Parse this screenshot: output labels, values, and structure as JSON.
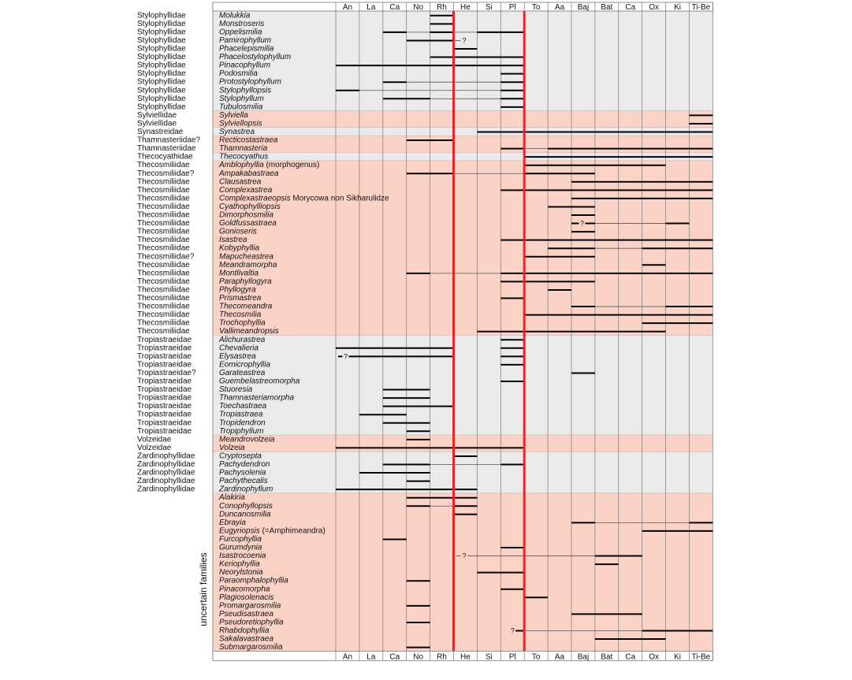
{
  "chart_data": {
    "type": "range-chart",
    "stages": [
      "An",
      "La",
      "Ca",
      "No",
      "Rh",
      "He",
      "Si",
      "Pl",
      "To",
      "Aa",
      "Baj",
      "Bat",
      "Ca",
      "Ox",
      "Ki",
      "Ti-Be"
    ],
    "group_label": "uncertain families",
    "colors": {
      "pink": "#fbd3c6",
      "gray": "#eaeaea",
      "boundary": "#e8262a",
      "bar": "#000000",
      "range": "#555555",
      "grid": "#777777"
    },
    "rows": [
      {
        "family": "Stylophyllidae",
        "genus": "Molukkia",
        "bg": "gray",
        "bars": [
          [
            4,
            5
          ]
        ]
      },
      {
        "family": "Stylophyllidae",
        "genus": "Monstroseris",
        "bg": "gray",
        "bars": [
          [
            4,
            5
          ]
        ]
      },
      {
        "family": "Stylophyllidae",
        "genus": "Oppelismilia",
        "bg": "gray",
        "bars": [
          [
            2,
            3
          ],
          [
            4,
            5
          ],
          [
            6,
            8
          ]
        ],
        "ranges": [
          [
            2,
            8
          ]
        ]
      },
      {
        "family": "Stylophyllidae",
        "genus": "Pamirophyllum",
        "bg": "gray",
        "bars": [
          [
            3,
            5
          ]
        ],
        "ranges": [
          [
            3,
            5.3
          ]
        ],
        "qs": [
          5.45
        ]
      },
      {
        "family": "Stylophyllidae",
        "genus": "Phacelepismilia",
        "bg": "gray",
        "bars": [
          [
            5,
            6
          ]
        ]
      },
      {
        "family": "Stylophyllidae",
        "genus": "Phacelostylophyllum",
        "bg": "gray",
        "bars": [
          [
            4,
            8
          ]
        ]
      },
      {
        "family": "Stylophyllidae",
        "genus": "Pinacophyllum",
        "bg": "gray",
        "bars": [
          [
            0,
            8
          ]
        ]
      },
      {
        "family": "Stylophyllidae",
        "genus": "Podosmilia",
        "bg": "gray",
        "bars": [
          [
            7,
            8
          ]
        ]
      },
      {
        "family": "Stylophyllidae",
        "genus": "Protostylophyllum",
        "bg": "gray",
        "bars": [
          [
            2,
            3
          ],
          [
            7,
            8
          ]
        ],
        "ranges": [
          [
            2,
            8
          ]
        ]
      },
      {
        "family": "Stylophyllidae",
        "genus": "Stylophyllopsis",
        "bg": "gray",
        "bars": [
          [
            0,
            1
          ],
          [
            7,
            8
          ]
        ],
        "ranges": [
          [
            0,
            8
          ]
        ]
      },
      {
        "family": "Stylophyllidae",
        "genus": "Stylophyllum",
        "bg": "gray",
        "bars": [
          [
            2,
            4
          ],
          [
            7,
            8
          ]
        ],
        "ranges": [
          [
            2,
            8
          ]
        ]
      },
      {
        "family": "Stylophyllidae",
        "genus": "Tubulosmilia",
        "bg": "gray",
        "bars": [
          [
            7,
            8
          ]
        ]
      },
      {
        "family": "Sylviellidae",
        "genus": "Sylviella",
        "bg": "pink",
        "bars": [
          [
            15,
            16
          ]
        ]
      },
      {
        "family": "Sylviellidae",
        "genus": "Sylviellopsis",
        "bg": "pink",
        "bars": [
          [
            15,
            16
          ]
        ]
      },
      {
        "family": "Synastreidae",
        "genus": "Synastrea",
        "bg": "gray",
        "bars": [
          [
            6,
            16
          ]
        ]
      },
      {
        "family": "Thamnasteriidae?",
        "genus": "Recticostastraea",
        "bg": "pink",
        "bars": [
          [
            3,
            5
          ]
        ]
      },
      {
        "family": "Thamnasteriidae",
        "genus": "Thamnasteria",
        "bg": "pink",
        "bars": [
          [
            7,
            8
          ],
          [
            9,
            16
          ]
        ],
        "ranges": [
          [
            7,
            16
          ]
        ]
      },
      {
        "family": "Thecocyathidae",
        "genus": "Thecocyathus",
        "bg": "gray",
        "bars": [
          [
            8,
            16
          ]
        ]
      },
      {
        "family": "Thecosmiliidae",
        "genus": "Amblophyllia",
        "suffix": " (morphogenus)",
        "bg": "pink",
        "bars": [
          [
            8,
            14
          ]
        ]
      },
      {
        "family": "Thecosmiliidae?",
        "genus": "Ampakabastraea",
        "bg": "pink",
        "bars": [
          [
            3,
            5
          ],
          [
            8,
            11
          ]
        ],
        "ranges": [
          [
            3,
            11
          ]
        ]
      },
      {
        "family": "Thecosmiliidae",
        "genus": "Clausastrea",
        "bg": "pink",
        "bars": [
          [
            10,
            16
          ]
        ]
      },
      {
        "family": "Thecosmiliidae",
        "genus": "Complexastrea",
        "bg": "pink",
        "bars": [
          [
            7,
            16
          ]
        ]
      },
      {
        "family": "Thecosmiliidae",
        "genus": "Complexastraeopsis",
        "suffix": " Morycowa non Sikharulidze",
        "bg": "pink",
        "bars": [
          [
            10,
            16
          ]
        ]
      },
      {
        "family": "Thecosmiliidae",
        "genus": "Cyathophylliopsis",
        "bg": "pink",
        "bars": [
          [
            9,
            11
          ]
        ]
      },
      {
        "family": "Thecosmiliidae",
        "genus": "Dimorphosmilia",
        "bg": "pink",
        "bars": [
          [
            10,
            11
          ]
        ]
      },
      {
        "family": "Thecosmiliidae",
        "genus": "Goldfussastraea",
        "bg": "pink",
        "bars": [
          [
            10,
            11
          ],
          [
            14,
            15
          ]
        ],
        "ranges": [
          [
            10,
            15
          ]
        ],
        "qs": [
          10.45
        ]
      },
      {
        "family": "Thecosmiliidae",
        "genus": "Gonioseris",
        "bg": "pink",
        "bars": [
          [
            10,
            11
          ]
        ]
      },
      {
        "family": "Thecosmiliidae",
        "genus": "Isastrea",
        "bg": "pink",
        "bars": [
          [
            7,
            16
          ]
        ]
      },
      {
        "family": "Thecosmiliidae",
        "genus": "Kobyphyllia",
        "bg": "pink",
        "bars": [
          [
            9,
            11
          ],
          [
            13,
            16
          ]
        ],
        "ranges": [
          [
            9,
            16
          ]
        ]
      },
      {
        "family": "Thecosmiliidae?",
        "genus": "Mapucheastrea",
        "bg": "pink",
        "bars": [
          [
            8,
            11
          ]
        ]
      },
      {
        "family": "Thecosmiliidae",
        "genus": "Meandramorpha",
        "bg": "pink",
        "bars": [
          [
            13,
            14
          ]
        ]
      },
      {
        "family": "Thecosmiliidae",
        "genus": "Montlivaltia",
        "bg": "pink",
        "bars": [
          [
            3,
            4
          ],
          [
            7,
            16
          ]
        ],
        "ranges": [
          [
            3,
            16
          ]
        ]
      },
      {
        "family": "Thecosmiliidae",
        "genus": "Paraphyllogyra",
        "bg": "pink",
        "bars": [
          [
            7,
            11
          ]
        ]
      },
      {
        "family": "Thecosmiliidae",
        "genus": "Phyllogyra",
        "bg": "pink",
        "bars": [
          [
            9,
            10
          ]
        ]
      },
      {
        "family": "Thecosmiliidae",
        "genus": "Prismastrea",
        "bg": "pink",
        "bars": [
          [
            7,
            8
          ]
        ]
      },
      {
        "family": "Thecosmiliidae",
        "genus": "Thecomeandra",
        "bg": "pink",
        "bars": [
          [
            10,
            11
          ],
          [
            14,
            16
          ]
        ],
        "ranges": [
          [
            10,
            16
          ]
        ]
      },
      {
        "family": "Thecosmiliidae",
        "genus": "Thecosmilia",
        "bg": "pink",
        "bars": [
          [
            8,
            16
          ]
        ]
      },
      {
        "family": "Thecosmiliidae",
        "genus": "Trochophyllia",
        "bg": "pink",
        "bars": [
          [
            13,
            16
          ]
        ]
      },
      {
        "family": "Thecosmiliidae",
        "genus": "Vallimeandropsis",
        "bg": "pink",
        "bars": [
          [
            6,
            14
          ]
        ]
      },
      {
        "family": "Tropiastraeidae",
        "genus": "Alichurastrea",
        "bg": "gray",
        "bars": [
          [
            7,
            8
          ]
        ]
      },
      {
        "family": "Tropiastraeidae",
        "genus": "Chevalieria",
        "bg": "gray",
        "bars": [
          [
            0,
            5
          ],
          [
            7,
            8
          ]
        ]
      },
      {
        "family": "Tropiastraeidae",
        "genus": "Elysastrea",
        "bg": "gray",
        "bars": [
          [
            0.1,
            5
          ],
          [
            7,
            8
          ]
        ],
        "qs": [
          0.42
        ]
      },
      {
        "family": "Tropiastraeidae",
        "genus": "Eomicrophyllia",
        "bg": "gray",
        "bars": [
          [
            7,
            8
          ]
        ]
      },
      {
        "family": "Tropiastraeidae?",
        "genus": "Garateastrea",
        "bg": "gray",
        "bars": [
          [
            10,
            11
          ]
        ]
      },
      {
        "family": "Tropiastraeidae",
        "genus": "Guembelastreomorpha",
        "bg": "gray",
        "bars": [
          [
            7,
            8
          ]
        ]
      },
      {
        "family": "Tropiastraeidae",
        "genus": "Stuoresia",
        "bg": "gray",
        "bars": [
          [
            2,
            4
          ]
        ]
      },
      {
        "family": "Tropiastraeidae",
        "genus": "Thamnasteriamorpha",
        "bg": "gray",
        "bars": [
          [
            2,
            4
          ]
        ]
      },
      {
        "family": "Tropiastraeidae",
        "genus": "Toechastraea",
        "bg": "gray",
        "bars": [
          [
            2,
            5
          ]
        ]
      },
      {
        "family": "Tropiastraeidae",
        "genus": "Tropiastraea",
        "bg": "gray",
        "bars": [
          [
            1,
            3
          ]
        ]
      },
      {
        "family": "Tropiastraeidae",
        "genus": "Tropidendron",
        "bg": "gray",
        "bars": [
          [
            2,
            4
          ]
        ]
      },
      {
        "family": "Tropiastraeidae",
        "genus": "Tropiphyllum",
        "bg": "gray",
        "bars": [
          [
            3,
            4
          ]
        ]
      },
      {
        "family": "Volzeidae",
        "genus": "Meandrovolzeia",
        "bg": "pink",
        "bars": [
          [
            3,
            4
          ]
        ]
      },
      {
        "family": "Volzeidae",
        "genus": "Volzeia",
        "bg": "pink",
        "bars": [
          [
            0,
            8
          ]
        ]
      },
      {
        "family": "Zardinophyllidae",
        "genus": "Cryptosepta",
        "bg": "gray",
        "bars": [
          [
            5,
            6
          ]
        ]
      },
      {
        "family": "Zardinophyllidae",
        "genus": "Pachydendron",
        "bg": "gray",
        "bars": [
          [
            2,
            4
          ],
          [
            7,
            8
          ]
        ],
        "ranges": [
          [
            2,
            8
          ]
        ]
      },
      {
        "family": "Zardinophyllidae",
        "genus": "Pachysolenia",
        "bg": "gray",
        "bars": [
          [
            1,
            4
          ]
        ]
      },
      {
        "family": "Zardinophyllidae",
        "genus": "Pachythecalis",
        "bg": "gray",
        "bars": [
          [
            3,
            4
          ]
        ]
      },
      {
        "family": "Zardinophyllidae",
        "genus": "Zardinophyllum",
        "bg": "gray",
        "bars": [
          [
            0,
            6
          ]
        ]
      },
      {
        "family": "",
        "genus": "Alakiria",
        "bg": "pink",
        "bars": [
          [
            3,
            6
          ]
        ]
      },
      {
        "family": "",
        "genus": "Conophyllopsis",
        "bg": "pink",
        "bars": [
          [
            3,
            4
          ],
          [
            5,
            6
          ]
        ],
        "ranges": [
          [
            3,
            6
          ]
        ]
      },
      {
        "family": "",
        "genus": "Duncanosmilia",
        "bg": "pink",
        "bars": [
          [
            5,
            6
          ]
        ]
      },
      {
        "family": "",
        "genus": "Ebrayia",
        "bg": "pink",
        "bars": [
          [
            10,
            11
          ],
          [
            15,
            16
          ]
        ],
        "ranges": [
          [
            10,
            16
          ]
        ]
      },
      {
        "family": "",
        "genus": "Eugyriopsis",
        "suffix": " (=Amphimeandra)",
        "bg": "pink",
        "bars": [
          [
            13,
            16
          ]
        ]
      },
      {
        "family": "",
        "genus": "Furcophyllia",
        "bg": "pink",
        "bars": [
          [
            2,
            3
          ]
        ]
      },
      {
        "family": "",
        "genus": "Gurumdynia",
        "bg": "pink",
        "bars": [
          [
            7,
            8
          ]
        ]
      },
      {
        "family": "",
        "genus": "Isastrocoenia",
        "bg": "pink",
        "bars": [
          [
            11,
            13
          ]
        ],
        "ranges": [
          [
            5.1,
            13
          ]
        ],
        "qs": [
          5.45
        ]
      },
      {
        "family": "",
        "genus": "Keriophyllia",
        "bg": "pink",
        "bars": [
          [
            11,
            12
          ]
        ]
      },
      {
        "family": "",
        "genus": "Neorylstonia",
        "bg": "pink",
        "bars": [
          [
            6,
            8
          ]
        ]
      },
      {
        "family": "",
        "genus": "Paraomphalophyllia",
        "bg": "pink",
        "bars": [
          [
            3,
            4
          ]
        ]
      },
      {
        "family": "",
        "genus": "Pinacomorpha",
        "bg": "pink",
        "bars": [
          [
            7,
            8
          ]
        ]
      },
      {
        "family": "",
        "genus": "Plagiosolenacis",
        "bg": "pink",
        "bars": [
          [
            8,
            9
          ]
        ]
      },
      {
        "family": "",
        "genus": "Promargarosmilia",
        "bg": "pink",
        "bars": [
          [
            3,
            4
          ]
        ]
      },
      {
        "family": "",
        "genus": "Pseudisastraea",
        "bg": "pink",
        "bars": [
          [
            10,
            13
          ]
        ]
      },
      {
        "family": "",
        "genus": "Pseudoretiophyllia",
        "bg": "pink",
        "bars": [
          [
            3,
            4
          ]
        ]
      },
      {
        "family": "",
        "genus": "Rhabdophyllia",
        "bg": "pink",
        "bars": [
          [
            7.5,
            8
          ],
          [
            13,
            16
          ]
        ],
        "ranges": [
          [
            7.5,
            16
          ]
        ],
        "qs": [
          7.5
        ]
      },
      {
        "family": "",
        "genus": "Sakalavastraea",
        "bg": "pink",
        "bars": [
          [
            11,
            14
          ]
        ]
      },
      {
        "family": "",
        "genus": "Submargarosmilia",
        "bg": "pink",
        "bars": [
          [
            3,
            4
          ]
        ]
      }
    ]
  }
}
